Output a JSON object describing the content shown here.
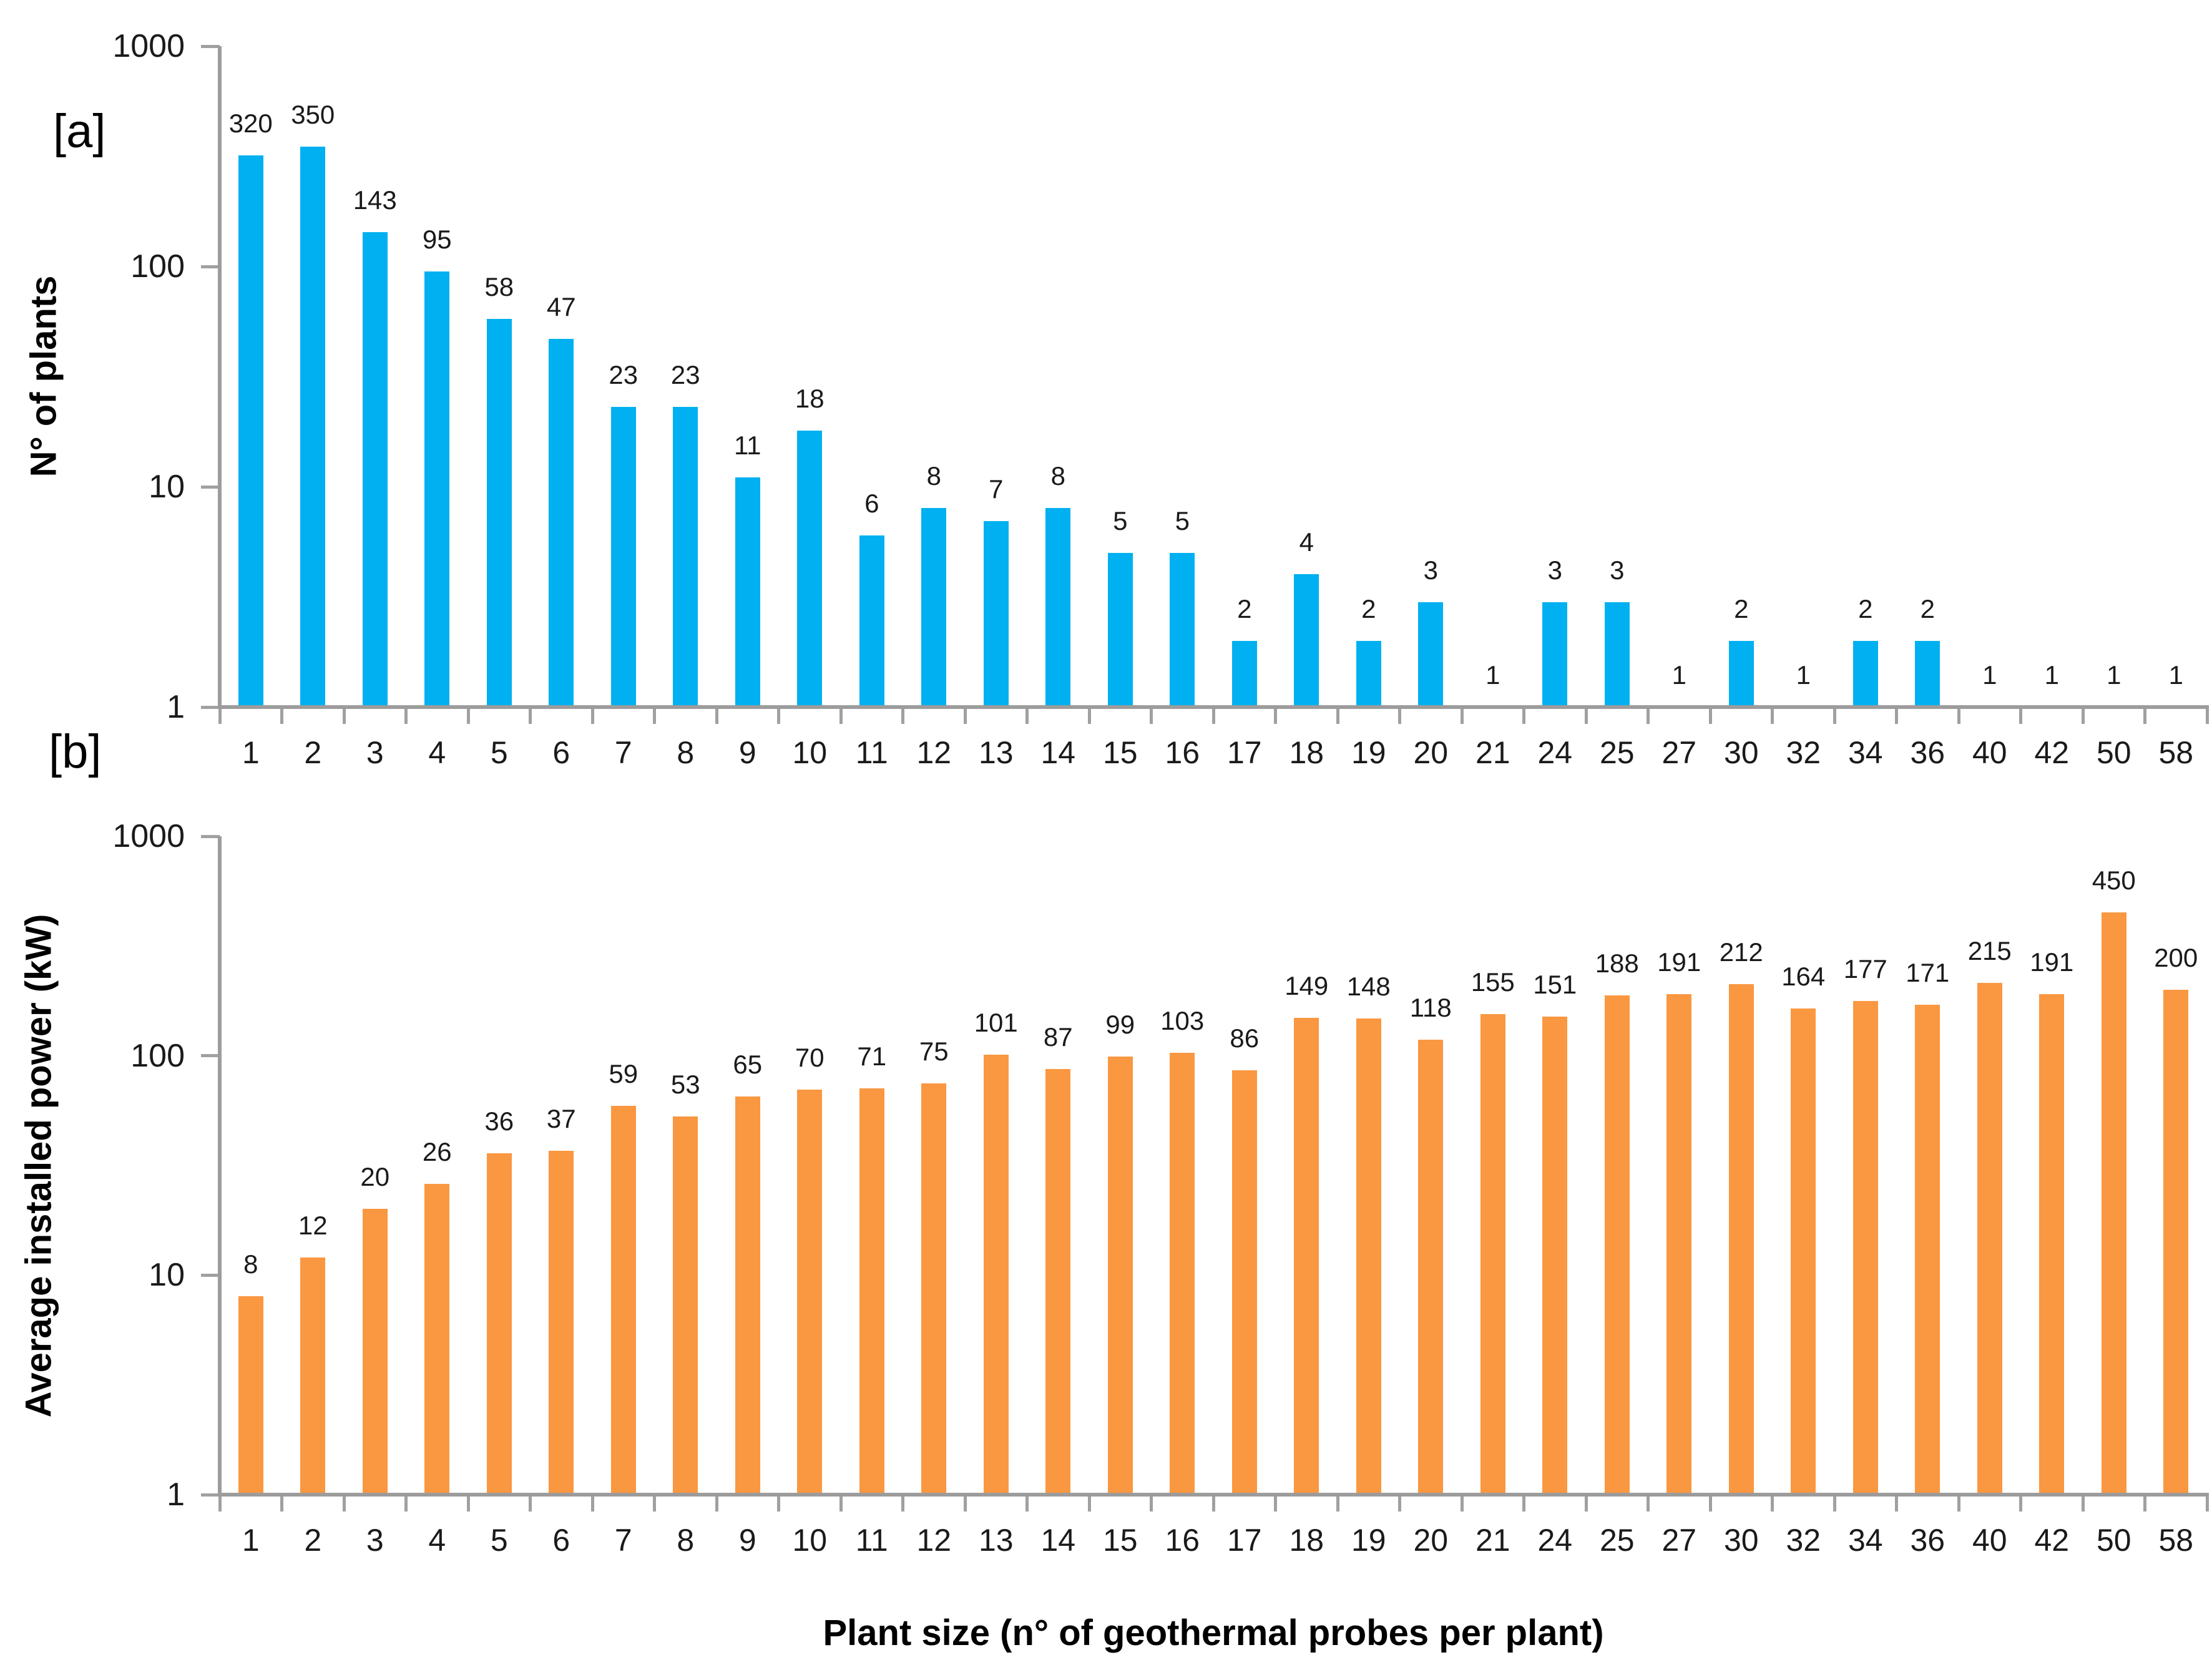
{
  "figure": {
    "panel_a_label": "[a]",
    "panel_b_label": "[b]",
    "x_axis_title": "Plant size (n° of geothermal probes per plant)",
    "colors": {
      "plants_bar": "#00B0F0",
      "power_bar": "#FA9741",
      "axis_gray": "#9C9C9C",
      "text": "#1A1A1A"
    }
  },
  "chart_data": [
    {
      "panel": "[a]",
      "type": "bar",
      "title": "",
      "ylabel": "N° of plants",
      "xlabel": "Plant size (n° of geothermal probes per plant)",
      "y_scale": "log",
      "ylim": [
        1,
        1000
      ],
      "y_ticks": [
        1,
        10,
        100,
        1000
      ],
      "grid": false,
      "legend": false,
      "data_labels": "outside-end",
      "bar_color": "#00B0F0",
      "categories": [
        "1",
        "2",
        "3",
        "4",
        "5",
        "6",
        "7",
        "8",
        "9",
        "10",
        "11",
        "12",
        "13",
        "14",
        "15",
        "16",
        "17",
        "18",
        "19",
        "20",
        "21",
        "24",
        "25",
        "27",
        "30",
        "32",
        "34",
        "36",
        "40",
        "42",
        "50",
        "58"
      ],
      "values": [
        320,
        350,
        143,
        95,
        58,
        47,
        23,
        23,
        11,
        18,
        6,
        8,
        7,
        8,
        5,
        5,
        2,
        4,
        2,
        3,
        1,
        3,
        3,
        1,
        2,
        1,
        2,
        2,
        1,
        1,
        1,
        1
      ]
    },
    {
      "panel": "[b]",
      "type": "bar",
      "title": "",
      "ylabel": "Average installed power (kW)",
      "xlabel": "Plant size (n° of geothermal probes per plant)",
      "y_scale": "log",
      "ylim": [
        1,
        1000
      ],
      "y_ticks": [
        1,
        10,
        100,
        1000
      ],
      "grid": false,
      "legend": false,
      "data_labels": "outside-end",
      "bar_color": "#FA9741",
      "categories": [
        "1",
        "2",
        "3",
        "4",
        "5",
        "6",
        "7",
        "8",
        "9",
        "10",
        "11",
        "12",
        "13",
        "14",
        "15",
        "16",
        "17",
        "18",
        "19",
        "20",
        "21",
        "24",
        "25",
        "27",
        "30",
        "32",
        "34",
        "36",
        "40",
        "42",
        "50",
        "58"
      ],
      "values": [
        8,
        12,
        20,
        26,
        36,
        37,
        59,
        53,
        65,
        70,
        71,
        75,
        101,
        87,
        99,
        103,
        86,
        149,
        148,
        118,
        155,
        151,
        188,
        191,
        212,
        164,
        177,
        171,
        215,
        191,
        450,
        200
      ]
    }
  ]
}
